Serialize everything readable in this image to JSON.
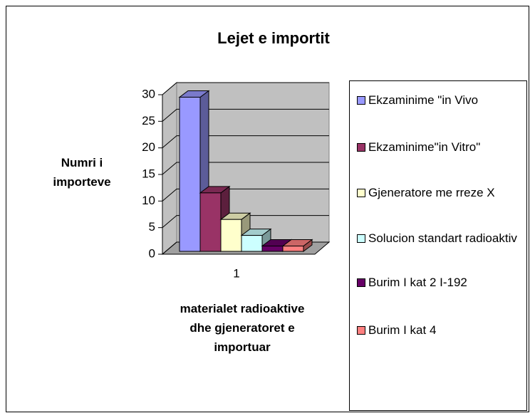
{
  "chart_data": {
    "type": "bar3d",
    "title": "Lejet e importit",
    "y_label": "Numri i importeve",
    "x_label": "materialet radioaktive dhe gjeneratoret e importuar",
    "categories": [
      "1"
    ],
    "series": [
      {
        "name": "Ekzaminime \"in Vivo",
        "color": "#9999ff",
        "values": [
          29
        ]
      },
      {
        "name": "Ekzaminime\"in Vitro\"",
        "color": "#993366",
        "values": [
          11
        ]
      },
      {
        "name": "Gjeneratore me rreze X",
        "color": "#ffffcc",
        "values": [
          6
        ]
      },
      {
        "name": "Solucion standart radioaktiv",
        "color": "#ccffff",
        "values": [
          3
        ]
      },
      {
        "name": "Burim I kat 2 I-192",
        "color": "#660066",
        "values": [
          1
        ]
      },
      {
        "name": "Burim I kat 4",
        "color": "#ff8080",
        "values": [
          1
        ]
      }
    ],
    "ylim": [
      0,
      30
    ],
    "yticks": [
      0,
      5,
      10,
      15,
      20,
      25,
      30
    ],
    "grid": true,
    "legend": "right"
  }
}
